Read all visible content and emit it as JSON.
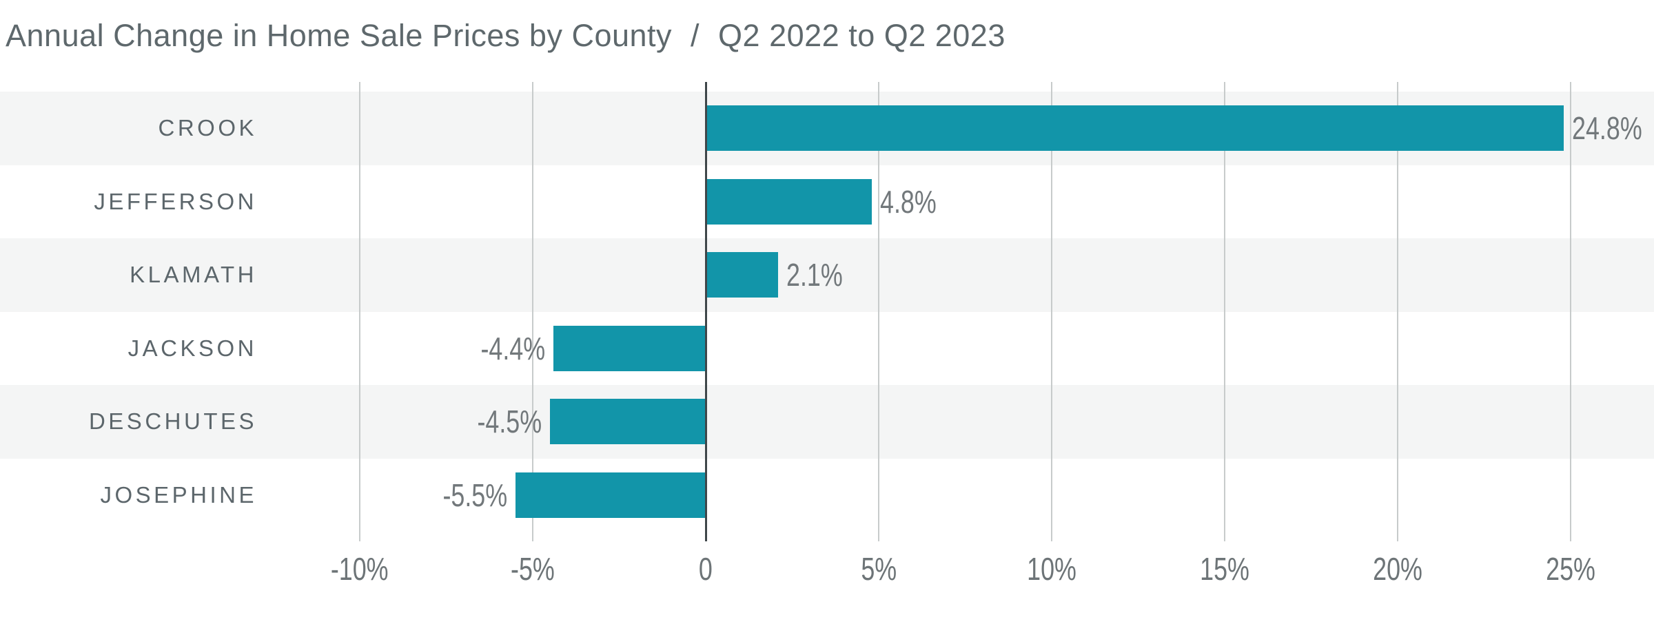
{
  "header": {
    "title_main": "Annual Change in Home Sale Prices by County",
    "title_separator": "/",
    "title_period": "Q2 2022 to Q2 2023"
  },
  "chart_data": {
    "type": "bar",
    "orientation": "horizontal",
    "title": "Annual Change in Home Sale Prices by County / Q2 2022 to Q2 2023",
    "xlabel": "",
    "ylabel": "",
    "categories": [
      "CROOK",
      "JEFFERSON",
      "KLAMATH",
      "JACKSON",
      "DESCHUTES",
      "JOSEPHINE"
    ],
    "values": [
      24.8,
      4.8,
      2.1,
      -4.4,
      -4.5,
      -5.5
    ],
    "value_labels": [
      "24.8%",
      "4.8%",
      "2.1%",
      "-4.4%",
      "-4.5%",
      "-5.5%"
    ],
    "x_ticks": [
      {
        "value": -10,
        "label": "-10%"
      },
      {
        "value": -5,
        "label": "-5%"
      },
      {
        "value": 0,
        "label": "0"
      },
      {
        "value": 5,
        "label": "5%"
      },
      {
        "value": 10,
        "label": "10%"
      },
      {
        "value": 15,
        "label": "15%"
      },
      {
        "value": 20,
        "label": "20%"
      },
      {
        "value": 25,
        "label": "25%"
      }
    ],
    "xlim": [
      -10,
      25
    ],
    "grid": true,
    "legend": false,
    "row_stripes": "alternating, first row shaded",
    "colors": {
      "bar": "#1295a9",
      "row_stripe": "#f4f5f5",
      "gridline": "#c7cbcb",
      "zero_line": "#3f474a",
      "category_label": "#5c666b",
      "value_label": "#72787b",
      "tick_label": "#6d7477",
      "title": "#5e686c",
      "background": "#ffffff"
    }
  }
}
